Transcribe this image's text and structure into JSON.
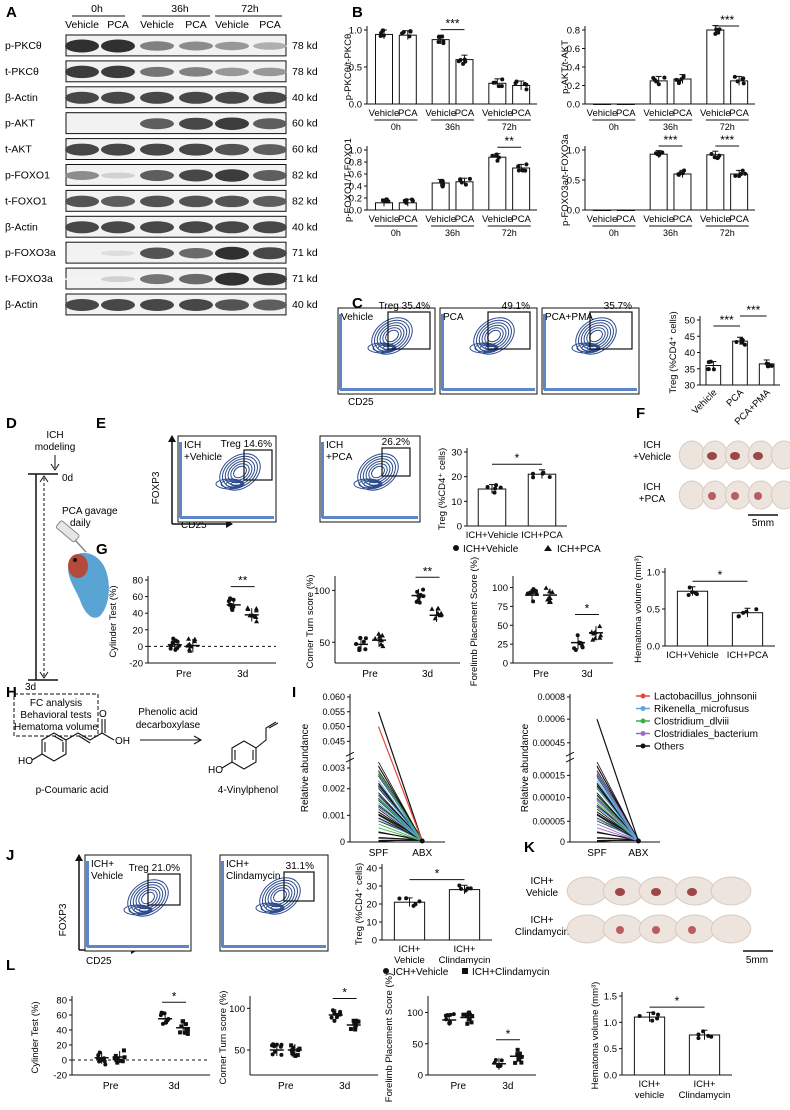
{
  "panels": {
    "A": "A",
    "B": "B",
    "C": "C",
    "D": "D",
    "E": "E",
    "F": "F",
    "G": "G",
    "H": "H",
    "I": "I",
    "J": "J",
    "K": "K",
    "L": "L"
  },
  "blot": {
    "times": [
      "0h",
      "36h",
      "72h"
    ],
    "lanes": [
      "Vehicle",
      "PCA",
      "Vehicle",
      "PCA",
      "Vehicle",
      "PCA"
    ],
    "rows": [
      {
        "name": "p-PKCθ",
        "kd": "78 kd"
      },
      {
        "name": "t-PKCθ",
        "kd": "78 kd"
      },
      {
        "name": "β-Actin",
        "kd": "40 kd"
      },
      {
        "name": "p-AKT",
        "kd": "60 kd"
      },
      {
        "name": "t-AKT",
        "kd": "60 kd"
      },
      {
        "name": "p-FOXO1",
        "kd": "82 kd"
      },
      {
        "name": "t-FOXO1",
        "kd": "82 kd"
      },
      {
        "name": "β-Actin",
        "kd": "40 kd"
      },
      {
        "name": "p-FOXO3a",
        "kd": "71 kd"
      },
      {
        "name": "t-FOXO3a",
        "kd": "71 kd"
      },
      {
        "name": "β-Actin",
        "kd": "40 kd"
      }
    ]
  },
  "chart_data": [
    {
      "id": "B1",
      "type": "bar",
      "ylabel": "p-PKCθ/t-PKCθ",
      "ylim": [
        0,
        1.0
      ],
      "yticks": [
        "0.0",
        "0.5",
        "1.0"
      ],
      "categories": [
        "Vehicle",
        "PCA",
        "Vehicle",
        "PCA",
        "Vehicle",
        "PCA"
      ],
      "groups": [
        "0h",
        "36h",
        "72h"
      ],
      "values": [
        0.94,
        0.93,
        0.87,
        0.6,
        0.28,
        0.25
      ],
      "sig": [
        {
          "text": "***",
          "a": 2,
          "b": 3
        }
      ]
    },
    {
      "id": "B2",
      "type": "bar",
      "ylabel": "p-AKT/t-AKT",
      "ylim": [
        0,
        0.8
      ],
      "yticks": [
        "0.0",
        "0.2",
        "0.4",
        "0.6",
        "0.8"
      ],
      "categories": [
        "Vehicle",
        "PCA",
        "Vehicle",
        "PCA",
        "Vehicle",
        "PCA"
      ],
      "groups": [
        "0h",
        "36h",
        "72h"
      ],
      "values": [
        0,
        0,
        0.25,
        0.27,
        0.8,
        0.25
      ],
      "sig": [
        {
          "text": "***",
          "a": 4,
          "b": 5
        }
      ]
    },
    {
      "id": "B3",
      "type": "bar",
      "ylabel": "p-FOXO1/T-FOXO1",
      "ylim": [
        0,
        1.0
      ],
      "yticks": [
        "0.0",
        "0.2",
        "0.4",
        "0.6",
        "0.8",
        "1.0"
      ],
      "categories": [
        "Vehicle",
        "PCA",
        "Vehicle",
        "PCA",
        "Vehicle",
        "PCA"
      ],
      "groups": [
        "0h",
        "36h",
        "72h"
      ],
      "values": [
        0.12,
        0.12,
        0.45,
        0.47,
        0.88,
        0.7
      ],
      "sig": [
        {
          "text": "**",
          "a": 4,
          "b": 5
        }
      ]
    },
    {
      "id": "B4",
      "type": "bar",
      "ylabel": "p-FOXO3a/t-FOXO3a",
      "ylim": [
        0,
        1.0
      ],
      "yticks": [
        "0.0",
        "0.5",
        "1.0"
      ],
      "categories": [
        "Vehicle",
        "PCA",
        "Vehicle",
        "PCA",
        "Vehicle",
        "PCA"
      ],
      "groups": [
        "0h",
        "36h",
        "72h"
      ],
      "values": [
        0,
        0,
        0.93,
        0.6,
        0.92,
        0.6
      ],
      "sig": [
        {
          "text": "***",
          "a": 2,
          "b": 3
        },
        {
          "text": "***",
          "a": 4,
          "b": 5
        }
      ]
    },
    {
      "id": "C",
      "type": "bar",
      "ylabel": "Treg (%CD4⁺ cells)",
      "ylim": [
        30,
        50
      ],
      "yticks": [
        "30",
        "35",
        "40",
        "45",
        "50"
      ],
      "categories": [
        "Vehicle",
        "PCA",
        "PCA+PMA"
      ],
      "values": [
        36,
        43.5,
        36.5
      ],
      "sig": [
        {
          "text": "***",
          "a": 0,
          "b": 1
        },
        {
          "text": "***",
          "a": 1,
          "b": 2
        }
      ]
    },
    {
      "id": "E",
      "type": "bar",
      "ylabel": "Treg (%CD4⁺ cells)",
      "ylim": [
        0,
        30
      ],
      "yticks": [
        "0",
        "10",
        "20",
        "30"
      ],
      "categories": [
        "ICH+Vehicle",
        "ICH+PCA"
      ],
      "values": [
        15,
        21
      ],
      "sig": [
        {
          "text": "*",
          "a": 0,
          "b": 1
        }
      ]
    },
    {
      "id": "G4",
      "type": "bar",
      "ylabel": "Hematoma volume (mm³)",
      "ylim": [
        0,
        1.0
      ],
      "yticks": [
        "0.0",
        "0.5",
        "1.0"
      ],
      "categories": [
        "ICH+Vehicle",
        "ICH+PCA"
      ],
      "values": [
        0.74,
        0.45
      ],
      "sig": [
        {
          "text": "*",
          "a": 0,
          "b": 1
        }
      ]
    },
    {
      "id": "J",
      "type": "bar",
      "ylabel": "Treg (%CD4⁺ cells)",
      "ylim": [
        0,
        40
      ],
      "yticks": [
        "0",
        "10",
        "20",
        "30",
        "40"
      ],
      "categories": [
        "ICH+\nVehicle",
        "ICH+\nClindamycin"
      ],
      "values": [
        21,
        28
      ],
      "sig": [
        {
          "text": "*",
          "a": 0,
          "b": 1
        }
      ]
    },
    {
      "id": "L4",
      "type": "bar",
      "ylabel": "Hematoma volume (mm³)",
      "ylim": [
        0,
        1.5
      ],
      "yticks": [
        "0.0",
        "0.5",
        "1.0",
        "1.5"
      ],
      "categories": [
        "ICH+\nvehicle",
        "ICH+\nClindamycin"
      ],
      "values": [
        1.1,
        0.76
      ],
      "sig": [
        {
          "text": "*",
          "a": 0,
          "b": 1
        }
      ]
    },
    {
      "id": "G1",
      "type": "scatter",
      "ylabel": "Cylinder Test (%)",
      "ylim": [
        -20,
        80
      ],
      "yticks": [
        "-20",
        "0",
        "20",
        "40",
        "60",
        "80"
      ],
      "categories": [
        "Pre",
        "3d"
      ],
      "series": [
        {
          "name": "ICH+Vehicle",
          "values": [
            2,
            50
          ]
        },
        {
          "name": "ICH+PCA",
          "values": [
            1,
            38
          ]
        }
      ],
      "sig": [
        {
          "text": "**",
          "cat": 1
        }
      ]
    },
    {
      "id": "G2",
      "type": "scatter",
      "ylabel": "Corner Turn score (%)",
      "ylim": [
        30,
        110
      ],
      "yticks": [
        "50",
        "100"
      ],
      "categories": [
        "Pre",
        "3d"
      ],
      "series": [
        {
          "name": "ICH+Vehicle",
          "values": [
            48,
            95
          ]
        },
        {
          "name": "ICH+PCA",
          "values": [
            52,
            76
          ]
        }
      ],
      "sig": [
        {
          "text": "**",
          "cat": 1
        }
      ]
    },
    {
      "id": "G3",
      "type": "scatter",
      "ylabel": "Forelimb Placement Score (%)",
      "ylim": [
        0,
        110
      ],
      "yticks": [
        "0",
        "25",
        "50",
        "75",
        "100"
      ],
      "categories": [
        "Pre",
        "3d"
      ],
      "series": [
        {
          "name": "ICH+Vehicle",
          "values": [
            90,
            27
          ]
        },
        {
          "name": "ICH+PCA",
          "values": [
            90,
            40
          ]
        }
      ],
      "sig": [
        {
          "text": "*",
          "cat": 1
        }
      ]
    },
    {
      "id": "L1",
      "type": "scatter",
      "ylabel": "Cylinder Test (%)",
      "ylim": [
        -20,
        80
      ],
      "yticks": [
        "-20",
        "0",
        "20",
        "40",
        "60",
        "80"
      ],
      "categories": [
        "Pre",
        "3d"
      ],
      "series": [
        {
          "name": "ICH+Vehicle",
          "values": [
            3,
            55
          ]
        },
        {
          "name": "ICH+Clindamycin",
          "values": [
            4,
            43
          ]
        }
      ],
      "sig": [
        {
          "text": "*",
          "cat": 1
        }
      ]
    },
    {
      "id": "L2",
      "type": "scatter",
      "ylabel": "Corner Turn score (%)",
      "ylim": [
        20,
        110
      ],
      "yticks": [
        "50",
        "100"
      ],
      "categories": [
        "Pre",
        "3d"
      ],
      "series": [
        {
          "name": "ICH+Vehicle",
          "values": [
            50,
            92
          ]
        },
        {
          "name": "ICH+Clindamycin",
          "values": [
            50,
            80
          ]
        }
      ],
      "sig": [
        {
          "text": "*",
          "cat": 1
        }
      ]
    },
    {
      "id": "L3",
      "type": "scatter",
      "ylabel": "Forelimb Placement Score (%)",
      "ylim": [
        0,
        120
      ],
      "yticks": [
        "0",
        "50",
        "100"
      ],
      "categories": [
        "Pre",
        "3d"
      ],
      "series": [
        {
          "name": "ICH+Vehicle",
          "values": [
            88,
            18
          ]
        },
        {
          "name": "ICH+Clindamycin",
          "values": [
            92,
            30
          ]
        }
      ],
      "sig": [
        {
          "text": "*",
          "cat": 1
        }
      ]
    }
  ],
  "legend_g": {
    "vehicle": "ICH+Vehicle",
    "pca": "ICH+PCA"
  },
  "legend_l": {
    "vehicle": "ICH+Vehicle",
    "clinda": "ICH+Clindamycin"
  },
  "flow": {
    "xlabel": "CD25",
    "ylabel": "FOXP3",
    "c": [
      {
        "cond": "Vehicle",
        "val": "Treg 35.4%"
      },
      {
        "cond": "PCA",
        "val": "49.1%"
      },
      {
        "cond": "PCA+PMA",
        "val": "35.7%"
      }
    ],
    "e": [
      {
        "cond1": "ICH",
        "cond2": "+Vehicle",
        "val": "Treg 14.6%"
      },
      {
        "cond1": "ICH",
        "cond2": "+PCA",
        "val": "26.2%"
      }
    ],
    "j": [
      {
        "cond1": "ICH+",
        "cond2": "Vehicle",
        "val": "Treg 21.0%"
      },
      {
        "cond1": "ICH+",
        "cond2": "Clindamycin",
        "val": "31.1%"
      }
    ]
  },
  "timeline": {
    "model1": "ICH",
    "model2": "modeling",
    "d0": "0d",
    "gav1": "PCA gavage",
    "gav2": "daily",
    "d3": "3d",
    "b1": "FC analysis",
    "b2": "Behavioral tests",
    "b3": "Hematoma volume"
  },
  "brain_f": {
    "row1a": "ICH",
    "row1b": "+Vehicle",
    "row2a": "ICH",
    "row2b": "+PCA",
    "scale": "5mm"
  },
  "brain_k": {
    "row1a": "ICH+",
    "row1b": "Vehicle",
    "row2a": "ICH+",
    "row2b": "Clindamycin",
    "scale": "5mm"
  },
  "reaction": {
    "enzyme1": "Phenolic acid",
    "enzyme2": "decarboxylase",
    "sub": "p-Coumaric acid",
    "prod": "4-Vinylphenol",
    "oh": "OH",
    "ho": "HO",
    "o": "O"
  },
  "abund1": {
    "ylabel": "Relative abundance",
    "yticks": [
      "0",
      "0.001",
      "0.002",
      "0.003",
      "0.045",
      "0.050",
      "0.055",
      "0.060"
    ],
    "x": [
      "SPF",
      "ABX"
    ]
  },
  "abund2": {
    "ylabel": "Relative abundance",
    "yticks": [
      "0",
      "0.00005",
      "0.00010",
      "0.00015",
      "0.00045",
      "0.0006",
      "0.0008"
    ],
    "x": [
      "SPF",
      "ABX"
    ]
  },
  "taxa": [
    {
      "name": "Lactobacillus_johnsonii",
      "color": "#e8463a"
    },
    {
      "name": "Rikenella_microfusus",
      "color": "#5fa3e0"
    },
    {
      "name": "Clostridium_dlviii",
      "color": "#3dae48"
    },
    {
      "name": "Clostridiales_bacterium",
      "color": "#9b6bc7"
    },
    {
      "name": "Others",
      "color": "#111111"
    }
  ]
}
